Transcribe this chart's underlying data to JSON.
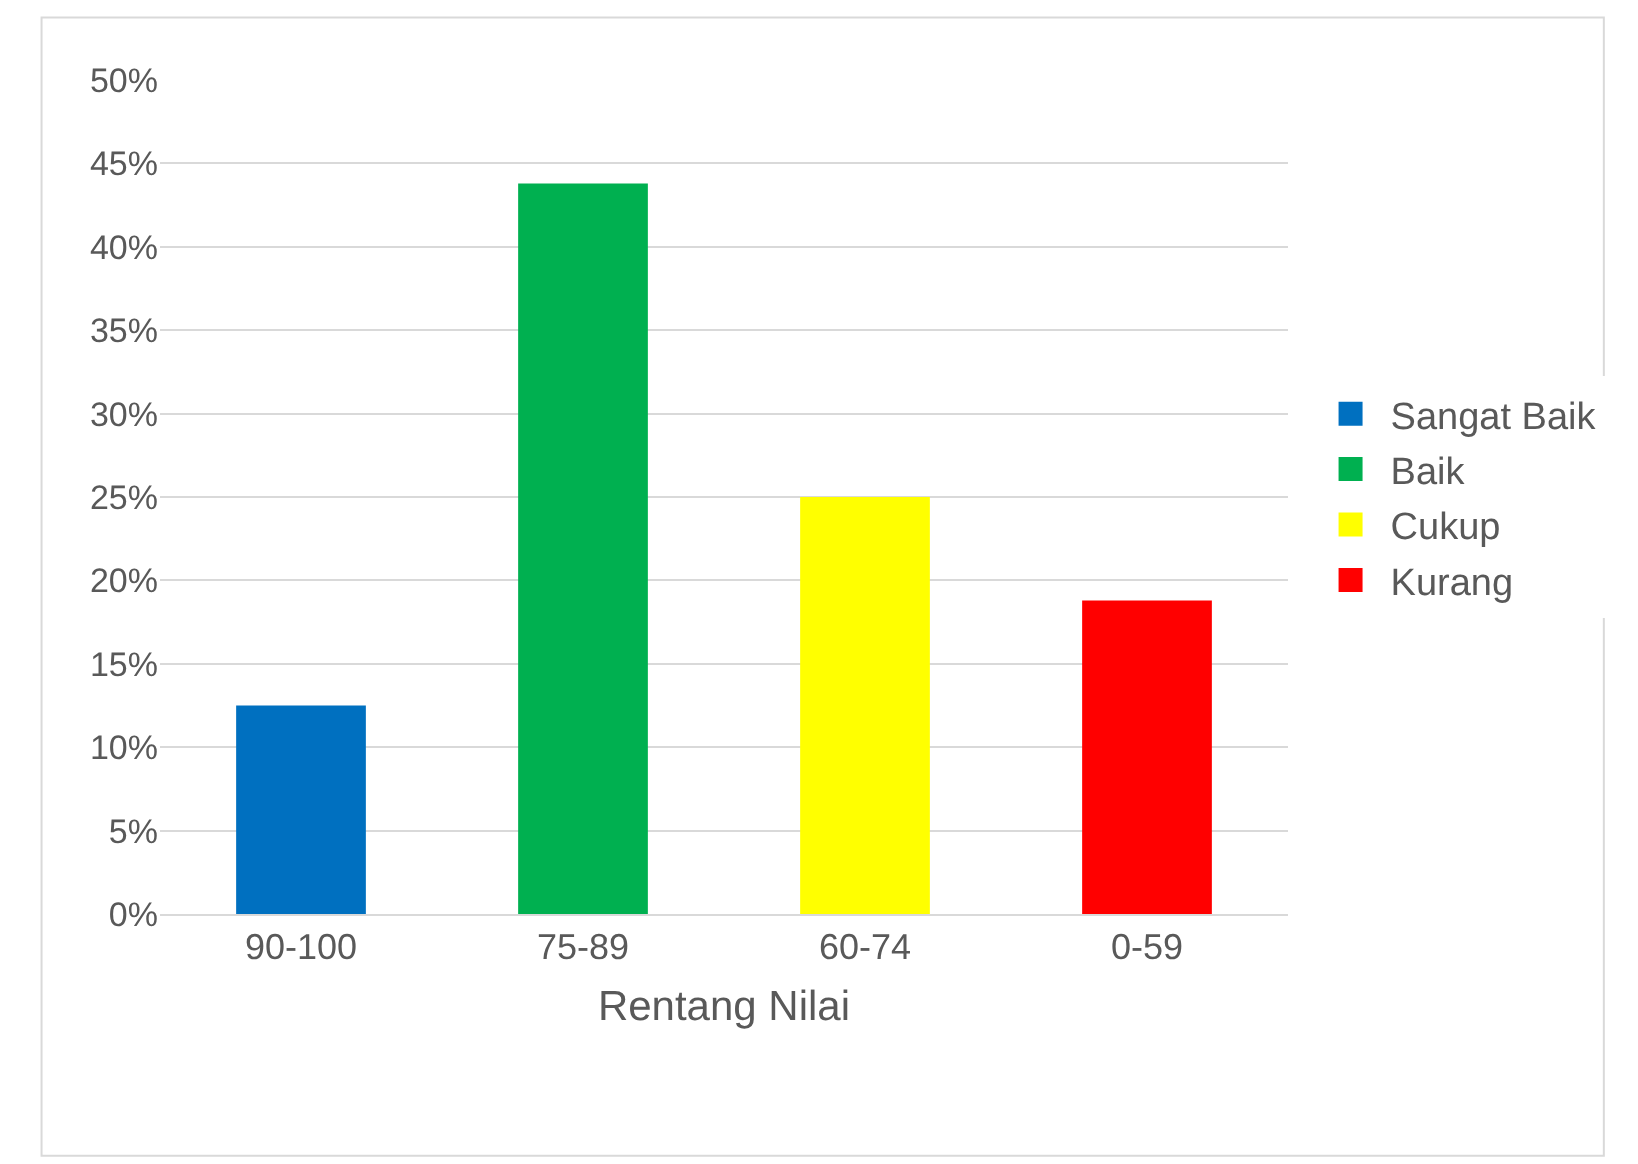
{
  "chart_data": {
    "type": "bar",
    "xlabel": "Rentang Nilai",
    "categories": [
      "90-100",
      "75-89",
      "60-74",
      "0-59"
    ],
    "series": [
      {
        "name": "Sangat Baik",
        "color": "#0070c0",
        "values": [
          12.5,
          null,
          null,
          null
        ]
      },
      {
        "name": "Baik",
        "color": "#00b050",
        "values": [
          null,
          43.8,
          null,
          null
        ]
      },
      {
        "name": "Cukup",
        "color": "#ffff00",
        "values": [
          null,
          null,
          25,
          null
        ]
      },
      {
        "name": "Kurang",
        "color": "#ff0000",
        "values": [
          null,
          null,
          null,
          18.8
        ]
      }
    ],
    "ylim": [
      0,
      50
    ],
    "yticks": [
      {
        "value": 0,
        "label": "0%"
      },
      {
        "value": 5,
        "label": "5%"
      },
      {
        "value": 10,
        "label": "10%"
      },
      {
        "value": 15,
        "label": "15%"
      },
      {
        "value": 20,
        "label": "20%"
      },
      {
        "value": 25,
        "label": "25%"
      },
      {
        "value": 30,
        "label": "30%"
      },
      {
        "value": 35,
        "label": "35%"
      },
      {
        "value": 40,
        "label": "40%"
      },
      {
        "value": 45,
        "label": "45%"
      },
      {
        "value": 50,
        "label": "50%"
      }
    ],
    "grid": "y",
    "legend": "right"
  }
}
